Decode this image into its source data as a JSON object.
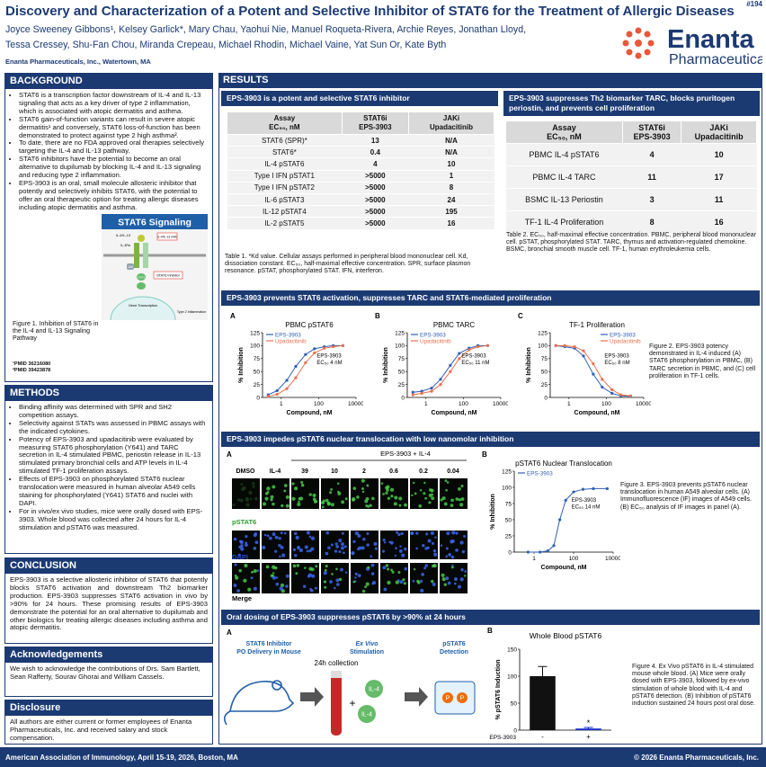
{
  "header": {
    "poster_number": "#194",
    "title": "Discovery and Characterization of a Potent and Selective Inhibitor of STAT6 for the Treatment of Allergic Diseases",
    "authors": [
      "Joyce Sweeney Gibbons¹, Kelsey Garlick*, Mary Chau, Yaohui Nie, Manuel Roqueta-Rivera, Archie Reyes, Jonathan Lloyd,",
      "Tessa Cressey, Shu-Fan Chou, Miranda Crepeau, Michael Rhodin, Michael Vaine, Yat Sun Or, Kate Byth"
    ],
    "affiliation": "Enanta Pharmaceuticals, Inc., Watertown, MA",
    "logo": {
      "name": "Enanta",
      "sub": "Pharmaceuticals"
    }
  },
  "background": {
    "heading": "BACKGROUND",
    "bullets": [
      "STAT6 is a transcription factor downstream of IL-4 and IL-13 signaling that acts as a key driver of type 2 inflammation, which is associated with atopic dermatitis and asthma.",
      "STAT6 gain-of-function variants can result in severe atopic dermatitis¹ and conversely, STAT6 loss-of-function has been demonstrated to protect against type 2 high asthma².",
      "To date, there are no FDA approved oral therapies selectively targeting the IL-4 and IL-13 pathway.",
      "STAT6 inhibitors have the potential to become an oral alternative to dupilumab by blocking IL-4 and IL-13 signaling and reducing type 2 inflammation.",
      "EPS-3903 is an oral, small molecule allosteric inhibitor that potently and selectively inhibits STAT6, with the potential to offer an oral therapeutic option for treating allergic diseases including atopic dermatitis and asthma."
    ],
    "refs": [
      "¹PMID 36216080",
      "²PMID 39423878"
    ]
  },
  "signaling": {
    "title": "STAT6 Signaling",
    "labels": [
      "IL-4/IL-13",
      "IL-4/IL-13 mAb",
      "IL-4Rα",
      "JAK",
      "STAT6",
      "STAT6 Inhibitor",
      "Gene Transcription",
      "Type 2 Inflammation"
    ],
    "caption": "Figure 1. Inhibition of STAT6 in the IL-4 and IL-13 Signaling Pathway"
  },
  "methods": {
    "heading": "METHODS",
    "bullets": [
      "Binding affinity was determined with SPR and SH2 competition assays.",
      "Selectivity against STATs was assessed in PBMC assays with the indicated cytokines.",
      "Potency of EPS-3903 and upadacitinib were evaluated by measuring STAT6 phosphorylation (Y641) and TARC secretion in IL-4 stimulated PBMC, periostin release in IL-13 stimulated primary bronchial cells and ATP levels in IL-4 stimulated TF-1 proliferation assays.",
      "Effects of EPS-3903 on phosphorylated STAT6 nuclear translocation were measured in human alveolar A549 cells staining for phosphorylated (Y641) STAT6 and nuclei with DAPI.",
      "For in vivo/ex vivo studies, mice were orally dosed with EPS-3903. Whole blood was collected after 24 hours for IL-4 stimulation and pSTAT6 was measured."
    ]
  },
  "conclusion": {
    "heading": "CONCLUSION",
    "text": "EPS-3903 is a selective allosteric inhibitor of STAT6 that potently blocks STAT6 activation and downstream Th2 biomarker production. EPS-3903 suppresses STAT6 activation in vivo by >90% for 24 hours. These promising results of EPS-3903 demonstrate the potential for an oral alternative to dupilumab and other biologics for treating allergic diseases including asthma and atopic dermatitis."
  },
  "acknowledgements": {
    "heading": "Acknowledgements",
    "text": "We wish to acknowledge the contributions of Drs. Sam Bartlett, Sean Rafferty, Sourav Ghorai and William Cassels."
  },
  "disclosure": {
    "heading": "Disclosure",
    "text": "All authors are either current or former employees of Enanta Pharmaceuticals, Inc. and received salary and stock compensation."
  },
  "results": {
    "heading": "RESULTS"
  },
  "table1": {
    "heading": "EPS-3903 is a potent and selective STAT6 inhibitor",
    "columns": [
      [
        "Assay",
        "EC₅₀, nM"
      ],
      [
        "STAT6i",
        "EPS-3903"
      ],
      [
        "JAKi",
        "Upadacitinib"
      ]
    ],
    "rows": [
      [
        "STAT6 (SPR)*",
        "13",
        "N/A"
      ],
      [
        "STAT6*",
        "0.4",
        "N/A"
      ],
      [
        "IL-4 pSTAT6",
        "4",
        "10"
      ],
      [
        "Type I IFN pSTAT1",
        ">5000",
        "1"
      ],
      [
        "Type I IFN pSTAT2",
        ">5000",
        "8"
      ],
      [
        "IL-6 pSTAT3",
        ">5000",
        "24"
      ],
      [
        "IL-12 pSTAT4",
        ">5000",
        "195"
      ],
      [
        "IL-2 pSTAT5",
        ">5000",
        "16"
      ]
    ],
    "caption": "Table 1. *Kd value. Cellular assays performed in peripheral blood mononuclear cell. Kd, dissociation constant. EC₅₀, half-maximal effective concentration. SPR, surface plasmon resonance. pSTAT, phosphorylated STAT. IFN, interferon."
  },
  "table2": {
    "heading": "EPS-3903 suppresses Th2 biomarker TARC, blocks pruritogen periostin, and prevents cell proliferation",
    "columns": [
      [
        "Assay",
        "EC₅₀, nM"
      ],
      [
        "STAT6i",
        "EPS-3903"
      ],
      [
        "JAKi",
        "Upadacitinib"
      ]
    ],
    "rows": [
      [
        "PBMC IL-4 pSTAT6",
        "4",
        "10"
      ],
      [
        "PBMC IL-4 TARC",
        "11",
        "17"
      ],
      [
        "BSMC IL-13 Periostin",
        "3",
        "11"
      ],
      [
        "TF-1 IL-4 Proliferation",
        "8",
        "16"
      ]
    ],
    "caption": "Table 2. EC₅₀, half-maximal effective concentration. PBMC, peripheral blood mononuclear cell. pSTAT, phosphorylated STAT. TARC, thymus and activation-regulated chemokine. BSMC, bronchial smooth muscle cell. TF-1, human erythroleukemia cells."
  },
  "figure2": {
    "heading": "EPS-3903 prevents STAT6 activation, suppresses TARC and STAT6-mediated proliferation",
    "caption": "Figure 2. EPS-3903 potency demonstrated in IL-4 induced (A) STAT6 phosphorylation in PBMC, (B) TARC secretion in PBMC, and (C) cell proliferation in TF-1 cells."
  },
  "figure3": {
    "heading": "EPS-3903 impedes pSTAT6 nuclear translocation with low nanomolar inhibition",
    "panel": "A",
    "treatment": "EPS-3903 + IL-4",
    "columns": [
      "DMSO",
      "IL-4",
      "39",
      "10",
      "2",
      "0.6",
      "0.2",
      "0.04"
    ],
    "rows": [
      "pSTAT6",
      "DAPI",
      "Merge"
    ],
    "caption": "Figure 3. EPS-3903 prevents pSTAT6 nuclear translocation in human A549 alveolar cells. (A) Immunofluorescence (IF) images of A549 cells. (B) EC₅₀ analysis of IF images in panel (A)."
  },
  "figure4": {
    "heading": "Oral dosing of EPS-3903 suppresses pSTAT6 by >90% at 24 hours",
    "panel": "A",
    "steps": [
      [
        "STAT6 Inhibitor",
        "PO Delivery in Mouse"
      ],
      [
        "Ex Vivo",
        "Stimulation"
      ],
      [
        "pSTAT6",
        "Detection"
      ]
    ],
    "collection": "24h collection",
    "reagent": "IL-4",
    "plus": "+",
    "phospho": "P",
    "caption": "Figure 4. Ex Vivo pSTAT6 in IL-4 stimulated mouse whole blood. (A) Mice were orally dosed with EPS-3903, followed by ex-vivo stimulation of whole blood with IL-4 and pSTAT6 detection. (B) Inhibition of pSTAT6 induction sustained 24 hours post oral dose."
  },
  "chart_data": [
    {
      "type": "line",
      "panel": "A",
      "title": "PBMC pSTAT6",
      "x": [
        0.2,
        0.6,
        2,
        6,
        20,
        60,
        200,
        600,
        2000
      ],
      "series": [
        {
          "name": "EPS-3903",
          "color": "#2f5fb3",
          "values": [
            5,
            13,
            33,
            60,
            83,
            94,
            98,
            100,
            100
          ]
        },
        {
          "name": "Upadacitinib",
          "color": "#e8704f",
          "values": [
            2,
            6,
            17,
            38,
            67,
            86,
            95,
            98,
            100
          ]
        }
      ],
      "xlabel": "Compound, nM",
      "ylabel": "% Inhibition",
      "log_x": true,
      "xlim": [
        0.1,
        10000
      ],
      "xticks": [
        1,
        100,
        10000
      ],
      "ylim": [
        0,
        125
      ],
      "yticks": [
        0,
        25,
        50,
        75,
        100,
        125
      ],
      "legend": "upper left",
      "annotation": [
        "EPS-3903",
        "EC₅₀ 4 nM"
      ]
    },
    {
      "type": "line",
      "panel": "B",
      "title": "PBMC TARC",
      "x": [
        0.2,
        0.6,
        2,
        6,
        20,
        60,
        200,
        600,
        2000
      ],
      "series": [
        {
          "name": "EPS-3903",
          "color": "#2f5fb3",
          "values": [
            10,
            12,
            18,
            35,
            62,
            85,
            95,
            100,
            100
          ]
        },
        {
          "name": "Upadacitinib",
          "color": "#e8704f",
          "values": [
            5,
            8,
            12,
            25,
            50,
            75,
            92,
            98,
            100
          ]
        }
      ],
      "xlabel": "Compound, nM",
      "ylabel": "% Inhibition",
      "log_x": true,
      "xlim": [
        0.1,
        10000
      ],
      "xticks": [
        1,
        100,
        10000
      ],
      "ylim": [
        0,
        125
      ],
      "yticks": [
        0,
        25,
        50,
        75,
        100,
        125
      ],
      "legend": "upper left",
      "annotation": [
        "EPS-3903",
        "EC₅₀ 11 nM"
      ]
    },
    {
      "type": "line",
      "panel": "C",
      "title": "TF-1 Proliferation",
      "x": [
        0.2,
        0.6,
        2,
        6,
        20,
        60,
        200,
        600,
        2000
      ],
      "series": [
        {
          "name": "EPS-3903",
          "color": "#2f5fb3",
          "values": [
            100,
            98,
            95,
            80,
            45,
            20,
            8,
            3,
            2
          ]
        },
        {
          "name": "Upadacitinib",
          "color": "#e8704f",
          "values": [
            100,
            100,
            98,
            90,
            65,
            35,
            15,
            5,
            3
          ]
        }
      ],
      "xlabel": "Compound, nM",
      "ylabel": "% Inhibition",
      "log_x": true,
      "xlim": [
        0.1,
        10000
      ],
      "xticks": [
        1,
        100,
        10000
      ],
      "ylim": [
        0,
        125
      ],
      "yticks": [
        0,
        25,
        50,
        75,
        100,
        125
      ],
      "legend": "upper right",
      "annotation": [
        "EPS-3903",
        "EC₅₀ 8 nM"
      ]
    },
    {
      "type": "line",
      "panel": "B",
      "title": "pSTAT6 Nuclear Translocation",
      "x": [
        0.5,
        2,
        5,
        10,
        20,
        40,
        100,
        300,
        1000,
        5000
      ],
      "series": [
        {
          "name": "EPS-3903",
          "color": "#2f5fb3",
          "values": [
            0,
            0,
            2,
            10,
            50,
            80,
            93,
            97,
            98,
            98
          ]
        }
      ],
      "xlabel": "Compound, nM",
      "ylabel": "% Inhibition",
      "log_x": true,
      "xlim": [
        0.1,
        10000
      ],
      "xticks": [
        1,
        100,
        10000
      ],
      "ylim": [
        0,
        125
      ],
      "yticks": [
        0,
        25,
        50,
        75,
        100,
        125
      ],
      "legend": "upper left",
      "annotation": [
        "EPS-3903",
        "EC₅₀ 14 nM"
      ]
    },
    {
      "type": "bar",
      "panel": "B",
      "title": "Whole Blood pSTAT6",
      "categories": [
        "-",
        "+"
      ],
      "values": [
        100,
        3
      ],
      "errors": [
        18,
        2
      ],
      "colors": [
        "#111111",
        "#1a2fc8"
      ],
      "xlabel": "EPS-3903",
      "ylabel": "% pSTAT6 Induction",
      "annotation": "*",
      "ylim": [
        0,
        150
      ],
      "yticks": [
        0,
        50,
        100,
        150
      ]
    }
  ],
  "footer": {
    "left": "American Association of Immunology, April 15-19, 2026, Boston, MA",
    "right": "© 2026 Enanta Pharmaceuticals, Inc."
  }
}
